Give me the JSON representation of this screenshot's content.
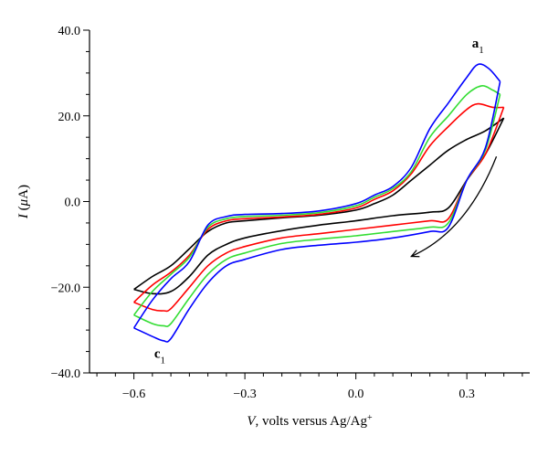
{
  "chart_data": {
    "type": "line",
    "xlabel": {
      "var": "V",
      "rest": ", volts versus Ag/Ag",
      "sup": "+"
    },
    "ylabel": {
      "var": "I",
      "open": " (",
      "unit_var": "μ",
      "unit_rest": "A)"
    },
    "xlim": [
      -0.72,
      0.47
    ],
    "ylim": [
      -40,
      40
    ],
    "xticks": [
      -0.6,
      -0.3,
      0.0,
      0.3
    ],
    "xtick_labels": [
      "−0.6",
      "−0.3",
      "0.0",
      "0.3"
    ],
    "yticks": [
      40,
      20,
      0,
      -20,
      -40
    ],
    "ytick_labels": [
      "40.0",
      "20.0",
      "0.0",
      "−20.0",
      "−40.0"
    ],
    "grid": false,
    "annotations": [
      {
        "id": "a1",
        "base": "a",
        "sub": "1",
        "x": 0.33,
        "y": 36.0
      },
      {
        "id": "c1",
        "base": "c",
        "sub": "1",
        "x": -0.53,
        "y": -36.5
      }
    ],
    "arrow": {
      "from": [
        0.38,
        10.5
      ],
      "via": [
        0.3,
        -7.0
      ],
      "to": [
        0.15,
        -12.8
      ]
    },
    "series": [
      {
        "color": "#000000",
        "forward": [
          [
            -0.6,
            -20.5
          ],
          [
            -0.55,
            -17.5
          ],
          [
            -0.5,
            -15.0
          ],
          [
            -0.45,
            -11.0
          ],
          [
            -0.4,
            -7.0
          ],
          [
            -0.35,
            -5.0
          ],
          [
            -0.3,
            -4.5
          ],
          [
            -0.2,
            -3.8
          ],
          [
            -0.1,
            -3.2
          ],
          [
            0.0,
            -2.0
          ],
          [
            0.05,
            -0.5
          ],
          [
            0.1,
            1.5
          ],
          [
            0.15,
            5.0
          ],
          [
            0.2,
            8.5
          ],
          [
            0.25,
            12.0
          ],
          [
            0.3,
            14.5
          ],
          [
            0.35,
            16.5
          ],
          [
            0.4,
            19.5
          ]
        ],
        "reverse": [
          [
            0.4,
            19.5
          ],
          [
            0.35,
            11.0
          ],
          [
            0.3,
            5.0
          ],
          [
            0.25,
            -1.5
          ],
          [
            0.2,
            -2.5
          ],
          [
            0.1,
            -3.3
          ],
          [
            0.0,
            -4.5
          ],
          [
            -0.1,
            -5.5
          ],
          [
            -0.2,
            -6.8
          ],
          [
            -0.3,
            -8.5
          ],
          [
            -0.35,
            -10.0
          ],
          [
            -0.4,
            -12.5
          ],
          [
            -0.45,
            -17.5
          ],
          [
            -0.5,
            -21.0
          ],
          [
            -0.55,
            -21.5
          ],
          [
            -0.6,
            -20.5
          ]
        ]
      },
      {
        "color": "#ff0000",
        "forward": [
          [
            -0.6,
            -23.5
          ],
          [
            -0.55,
            -19.5
          ],
          [
            -0.5,
            -16.5
          ],
          [
            -0.45,
            -12.5
          ],
          [
            -0.4,
            -6.5
          ],
          [
            -0.35,
            -4.5
          ],
          [
            -0.3,
            -4.0
          ],
          [
            -0.2,
            -3.6
          ],
          [
            -0.1,
            -3.0
          ],
          [
            0.0,
            -1.5
          ],
          [
            0.05,
            0.5
          ],
          [
            0.1,
            2.5
          ],
          [
            0.15,
            6.5
          ],
          [
            0.2,
            13.0
          ],
          [
            0.25,
            17.5
          ],
          [
            0.3,
            21.5
          ],
          [
            0.33,
            22.8
          ],
          [
            0.37,
            22.0
          ],
          [
            0.4,
            22.0
          ]
        ],
        "reverse": [
          [
            0.4,
            22.0
          ],
          [
            0.35,
            11.0
          ],
          [
            0.3,
            5.0
          ],
          [
            0.25,
            -4.0
          ],
          [
            0.2,
            -4.5
          ],
          [
            0.1,
            -5.5
          ],
          [
            0.0,
            -6.5
          ],
          [
            -0.1,
            -7.5
          ],
          [
            -0.2,
            -8.5
          ],
          [
            -0.3,
            -10.5
          ],
          [
            -0.35,
            -12.0
          ],
          [
            -0.4,
            -15.0
          ],
          [
            -0.45,
            -20.0
          ],
          [
            -0.5,
            -25.0
          ],
          [
            -0.52,
            -25.5
          ],
          [
            -0.55,
            -25.2
          ],
          [
            -0.6,
            -23.5
          ]
        ]
      },
      {
        "color": "#33dd33",
        "forward": [
          [
            -0.6,
            -26.5
          ],
          [
            -0.55,
            -21.0
          ],
          [
            -0.5,
            -17.0
          ],
          [
            -0.45,
            -13.0
          ],
          [
            -0.4,
            -6.0
          ],
          [
            -0.35,
            -4.0
          ],
          [
            -0.3,
            -3.5
          ],
          [
            -0.2,
            -3.2
          ],
          [
            -0.1,
            -2.6
          ],
          [
            0.0,
            -1.0
          ],
          [
            0.05,
            1.0
          ],
          [
            0.1,
            3.0
          ],
          [
            0.15,
            7.0
          ],
          [
            0.2,
            15.0
          ],
          [
            0.25,
            20.0
          ],
          [
            0.3,
            25.0
          ],
          [
            0.34,
            27.0
          ],
          [
            0.37,
            26.0
          ],
          [
            0.39,
            25.0
          ]
        ],
        "reverse": [
          [
            0.39,
            25.0
          ],
          [
            0.35,
            12.0
          ],
          [
            0.3,
            5.0
          ],
          [
            0.25,
            -5.0
          ],
          [
            0.2,
            -6.0
          ],
          [
            0.1,
            -7.0
          ],
          [
            0.0,
            -8.0
          ],
          [
            -0.1,
            -8.8
          ],
          [
            -0.2,
            -9.8
          ],
          [
            -0.3,
            -12.0
          ],
          [
            -0.35,
            -13.5
          ],
          [
            -0.4,
            -17.0
          ],
          [
            -0.45,
            -22.5
          ],
          [
            -0.5,
            -28.5
          ],
          [
            -0.52,
            -29.0
          ],
          [
            -0.55,
            -28.5
          ],
          [
            -0.6,
            -26.5
          ]
        ]
      },
      {
        "color": "#0000ff",
        "forward": [
          [
            -0.6,
            -29.5
          ],
          [
            -0.55,
            -23.0
          ],
          [
            -0.5,
            -18.0
          ],
          [
            -0.45,
            -14.0
          ],
          [
            -0.4,
            -5.5
          ],
          [
            -0.35,
            -3.5
          ],
          [
            -0.3,
            -3.0
          ],
          [
            -0.2,
            -2.8
          ],
          [
            -0.1,
            -2.2
          ],
          [
            0.0,
            -0.5
          ],
          [
            0.05,
            1.5
          ],
          [
            0.1,
            3.5
          ],
          [
            0.15,
            8.0
          ],
          [
            0.2,
            17.0
          ],
          [
            0.25,
            23.0
          ],
          [
            0.3,
            29.0
          ],
          [
            0.33,
            32.0
          ],
          [
            0.36,
            31.0
          ],
          [
            0.39,
            28.0
          ]
        ],
        "reverse": [
          [
            0.39,
            28.0
          ],
          [
            0.35,
            12.5
          ],
          [
            0.3,
            5.0
          ],
          [
            0.25,
            -6.0
          ],
          [
            0.2,
            -7.0
          ],
          [
            0.1,
            -8.5
          ],
          [
            0.0,
            -9.5
          ],
          [
            -0.1,
            -10.2
          ],
          [
            -0.2,
            -11.2
          ],
          [
            -0.3,
            -13.5
          ],
          [
            -0.35,
            -15.0
          ],
          [
            -0.4,
            -19.0
          ],
          [
            -0.45,
            -25.0
          ],
          [
            -0.5,
            -32.0
          ],
          [
            -0.52,
            -32.5
          ],
          [
            -0.55,
            -31.5
          ],
          [
            -0.6,
            -29.5
          ]
        ]
      }
    ]
  }
}
